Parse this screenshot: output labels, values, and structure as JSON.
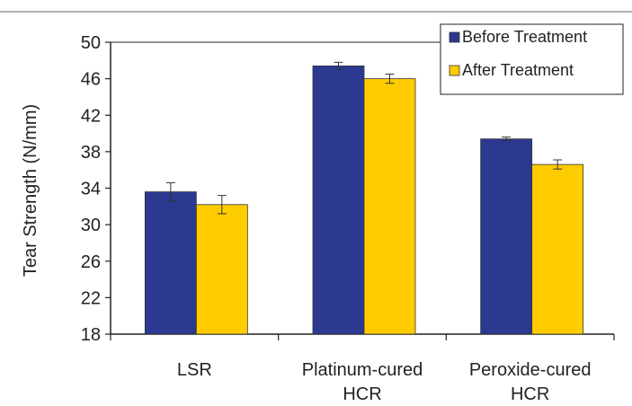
{
  "colors": {
    "before": "#2b3990",
    "after": "#ffcc00",
    "axis": "#222222",
    "rule": "#666666"
  },
  "chart_data": {
    "type": "bar",
    "title": "",
    "xlabel": "",
    "ylabel": "Tear Strength (N/mm)",
    "ylim": [
      18,
      50
    ],
    "yticks": [
      18,
      22,
      26,
      30,
      34,
      38,
      42,
      46,
      50
    ],
    "grid": false,
    "legend_position": "top-right",
    "categories": [
      [
        "LSR"
      ],
      [
        "Platinum-cured",
        "HCR"
      ],
      [
        "Peroxide-cured",
        "HCR"
      ]
    ],
    "series": [
      {
        "name": "Before Treatment",
        "values": [
          33.6,
          47.4,
          39.4
        ],
        "errors": [
          1.0,
          0.4,
          0.2
        ]
      },
      {
        "name": "After Treatment",
        "values": [
          32.2,
          46.0,
          36.6
        ],
        "errors": [
          1.0,
          0.5,
          0.5
        ]
      }
    ]
  }
}
